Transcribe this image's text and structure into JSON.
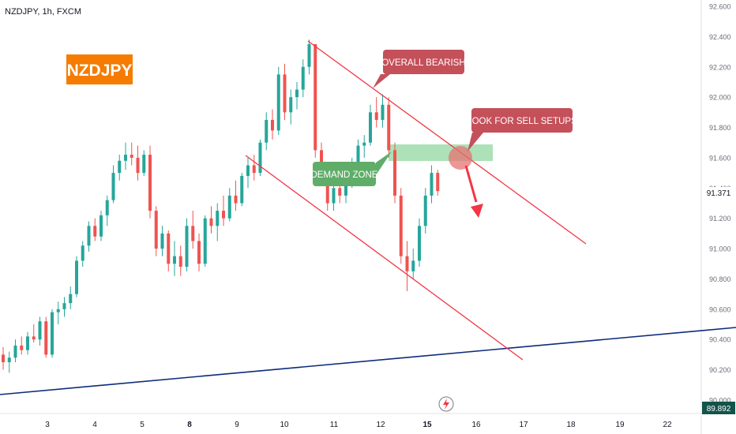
{
  "header": {
    "title": "NZDJPY, 1h, FXCM"
  },
  "colors": {
    "up": "#26a69a",
    "down": "#ef5350",
    "channel": "#f23645",
    "trendline": "#0d2a7a",
    "zone": "#9fdcaa",
    "badge_bg": "#f57c00",
    "callout_red": "#c4505a",
    "callout_green": "#5fad69",
    "circle": "#e57373"
  },
  "annotations": {
    "symbol_badge": "NZDJPY",
    "overall_bearish": "OVERALL BEARISH",
    "look_for_sell": "LOOK FOR SELL SETUPS",
    "demand_zone": "DEMAND ZONE"
  },
  "icons": {
    "bottom": "lightning-icon"
  },
  "chart_data": {
    "type": "candlestick",
    "title": "NZDJPY, 1h, FXCM",
    "ylim": [
      89.9,
      92.7
    ],
    "y_ticks": [
      "92.600",
      "92.400",
      "92.200",
      "92.000",
      "91.800",
      "91.600",
      "91.400",
      "91.200",
      "91.000",
      "90.800",
      "90.600",
      "90.400",
      "90.200",
      "90.000"
    ],
    "x_ticks": [
      "3",
      "4",
      "5",
      "8",
      "9",
      "10",
      "11",
      "12",
      "15",
      "16",
      "17",
      "18",
      "19",
      "22"
    ],
    "bold_x_ticks": [
      "8",
      "15"
    ],
    "last_price": "91.371",
    "last_price_value": 91.371,
    "low_marker": "89.892",
    "low_marker_value": 89.892,
    "series": [
      {
        "values": [
          [
            90.3,
            90.35,
            90.2,
            90.25
          ],
          [
            90.25,
            90.32,
            90.18,
            90.28
          ],
          [
            90.28,
            90.4,
            90.25,
            90.36
          ],
          [
            90.36,
            90.42,
            90.3,
            90.33
          ],
          [
            90.33,
            90.45,
            90.3,
            90.42
          ],
          [
            90.42,
            90.5,
            90.38,
            90.4
          ],
          [
            90.4,
            90.55,
            90.36,
            90.52
          ],
          [
            90.52,
            90.55,
            90.28,
            90.3
          ],
          [
            90.3,
            90.6,
            90.28,
            90.58
          ],
          [
            90.58,
            90.65,
            90.5,
            90.6
          ],
          [
            90.6,
            90.68,
            90.55,
            90.64
          ],
          [
            90.64,
            90.75,
            90.6,
            90.7
          ],
          [
            90.7,
            90.95,
            90.68,
            90.92
          ],
          [
            90.92,
            91.05,
            90.88,
            91.02
          ],
          [
            91.02,
            91.18,
            90.98,
            91.15
          ],
          [
            91.15,
            91.2,
            91.05,
            91.08
          ],
          [
            91.08,
            91.25,
            91.05,
            91.22
          ],
          [
            91.22,
            91.35,
            91.15,
            91.32
          ],
          [
            91.32,
            91.55,
            91.3,
            91.5
          ],
          [
            91.5,
            91.62,
            91.45,
            91.58
          ],
          [
            91.58,
            91.7,
            91.52,
            91.62
          ],
          [
            91.62,
            91.7,
            91.55,
            91.6
          ],
          [
            91.6,
            91.68,
            91.45,
            91.5
          ],
          [
            91.5,
            91.65,
            91.48,
            91.62
          ],
          [
            91.62,
            91.68,
            91.2,
            91.25
          ],
          [
            91.25,
            91.28,
            90.95,
            91.0
          ],
          [
            91.0,
            91.15,
            90.95,
            91.1
          ],
          [
            91.1,
            91.12,
            90.85,
            90.9
          ],
          [
            90.9,
            91.05,
            90.82,
            90.95
          ],
          [
            90.95,
            91.02,
            90.82,
            90.88
          ],
          [
            90.88,
            91.2,
            90.85,
            91.15
          ],
          [
            91.15,
            91.25,
            91.0,
            91.05
          ],
          [
            91.05,
            91.1,
            90.85,
            90.9
          ],
          [
            90.9,
            91.22,
            90.88,
            91.2
          ],
          [
            91.2,
            91.28,
            91.1,
            91.15
          ],
          [
            91.15,
            91.3,
            91.05,
            91.25
          ],
          [
            91.25,
            91.35,
            91.15,
            91.2
          ],
          [
            91.2,
            91.4,
            91.18,
            91.35
          ],
          [
            91.35,
            91.45,
            91.25,
            91.3
          ],
          [
            91.3,
            91.5,
            91.28,
            91.48
          ],
          [
            91.48,
            91.6,
            91.4,
            91.55
          ],
          [
            91.55,
            91.62,
            91.45,
            91.5
          ],
          [
            91.5,
            91.72,
            91.48,
            91.7
          ],
          [
            91.7,
            91.9,
            91.65,
            91.85
          ],
          [
            91.85,
            91.92,
            91.72,
            91.78
          ],
          [
            91.78,
            92.2,
            91.75,
            92.15
          ],
          [
            92.15,
            92.22,
            91.85,
            91.9
          ],
          [
            91.9,
            92.05,
            91.82,
            92.0
          ],
          [
            92.0,
            92.1,
            91.92,
            92.05
          ],
          [
            92.05,
            92.25,
            92.0,
            92.2
          ],
          [
            92.2,
            92.38,
            92.15,
            92.35
          ],
          [
            92.35,
            91.4,
            91.6,
            91.65
          ],
          [
            91.65,
            91.7,
            91.45,
            91.5
          ],
          [
            91.5,
            91.55,
            91.25,
            91.3
          ],
          [
            91.3,
            91.45,
            91.25,
            91.4
          ],
          [
            91.4,
            91.48,
            91.3,
            91.35
          ],
          [
            91.35,
            91.52,
            91.3,
            91.48
          ],
          [
            91.48,
            91.6,
            91.4,
            91.55
          ],
          [
            91.55,
            91.72,
            91.5,
            91.68
          ],
          [
            91.68,
            91.75,
            91.6,
            91.7
          ],
          [
            91.7,
            91.95,
            91.68,
            91.9
          ],
          [
            91.9,
            92.0,
            91.8,
            91.85
          ],
          [
            91.85,
            92.02,
            91.8,
            91.95
          ],
          [
            91.95,
            92.0,
            91.6,
            91.65
          ],
          [
            91.65,
            91.7,
            91.3,
            91.35
          ],
          [
            91.35,
            91.4,
            90.9,
            90.95
          ],
          [
            90.95,
            91.05,
            90.72,
            90.85
          ],
          [
            90.85,
            91.0,
            90.8,
            90.92
          ],
          [
            90.92,
            91.2,
            90.88,
            91.15
          ],
          [
            91.15,
            91.4,
            91.1,
            91.35
          ],
          [
            91.35,
            91.55,
            91.3,
            91.5
          ],
          [
            91.5,
            91.52,
            91.35,
            91.38
          ]
        ]
      }
    ]
  }
}
